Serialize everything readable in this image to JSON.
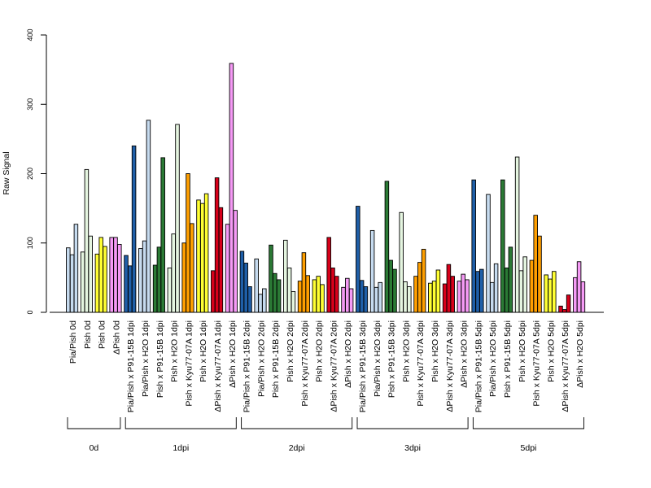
{
  "chart_data": {
    "type": "bar",
    "ylabel": "Raw Signal",
    "ylim": [
      0,
      400
    ],
    "yticks": [
      0,
      100,
      200,
      300,
      400
    ],
    "grid": false,
    "categories": [
      "Pia/Pish 0d",
      "Pish 0d",
      "Pish 0d",
      "ΔPish 0d",
      "Pia/Pish x P91-15B 1dpi",
      "Pia/Pish x H2O 1dpi",
      "Pish x P91-15B 1dpi",
      "Pish x H2O 1dpi",
      "Pish x Kyu77-07A 1dpi",
      "Pish x H2O 1dpi",
      "ΔPish x Kyu77-07A 1dpi",
      "ΔPish x H2O 1dpi",
      "Pia/Pish x P91-15B 2dpi",
      "Pia/Pish x H2O 2dpi",
      "Pish x P91-15B 2dpi",
      "Pish x H2O 2dpi",
      "Pish x Kyu77-07A 2dpi",
      "Pish x H2O 2dpi",
      "ΔPish x Kyu77-07A 2dpi",
      "ΔPish x H2O 2dpi",
      "Pia/Pish x P91-15B 3dpi",
      "Pia/Pish x H2O 3dpi",
      "Pish x P91-15B 3dpi",
      "Pish x H2O 3dpi",
      "Pish x Kyu77-07A 3dpi",
      "Pish x H2O 3dpi",
      "ΔPish x Kyu77-07A 3dpi",
      "ΔPish x H2O 3dpi",
      "Pia/Pish x P91-15B 5dpi",
      "Pia/Pish x H2O 5dpi",
      "Pish x P91-15B 5dpi",
      "Pish x H2O 5dpi",
      "Pish x Kyu77-07A 5dpi",
      "Pish x H2O 5dpi",
      "ΔPish x Kyu77-07A 5dpi",
      "ΔPish x H2O 5dpi"
    ],
    "bar_colors": [
      "#c6dbef",
      "#e5f5e0",
      "#ffff33",
      "#f59af5",
      "#1f5fa8",
      "#c6dbef",
      "#2b7a35",
      "#e5f5e0",
      "#ff9f00",
      "#ffff33",
      "#d7001a",
      "#f59af5",
      "#1f5fa8",
      "#c6dbef",
      "#2b7a35",
      "#e5f5e0",
      "#ff9f00",
      "#ffff33",
      "#d7001a",
      "#f59af5",
      "#1f5fa8",
      "#c6dbef",
      "#2b7a35",
      "#e5f5e0",
      "#ff9f00",
      "#ffff33",
      "#d7001a",
      "#f59af5",
      "#1f5fa8",
      "#c6dbef",
      "#2b7a35",
      "#e5f5e0",
      "#ff9f00",
      "#ffff33",
      "#d7001a",
      "#f59af5"
    ],
    "values": [
      [
        93,
        83,
        127
      ],
      [
        87,
        206,
        110
      ],
      [
        84,
        108,
        95
      ],
      [
        108,
        108,
        98
      ],
      [
        82,
        67,
        240
      ],
      [
        92,
        103,
        277
      ],
      [
        68,
        94,
        223
      ],
      [
        64,
        113,
        271
      ],
      [
        100,
        200,
        128
      ],
      [
        162,
        157,
        171
      ],
      [
        60,
        194,
        151
      ],
      [
        127,
        359,
        147
      ],
      [
        88,
        71,
        37
      ],
      [
        77,
        26,
        34
      ],
      [
        97,
        56,
        47
      ],
      [
        104,
        64,
        30
      ],
      [
        45,
        86,
        53
      ],
      [
        47,
        52,
        40
      ],
      [
        108,
        64,
        52
      ],
      [
        36,
        49,
        34
      ],
      [
        153,
        46,
        37
      ],
      [
        118,
        36,
        43
      ],
      [
        189,
        75,
        62
      ],
      [
        144,
        44,
        37
      ],
      [
        52,
        72,
        91
      ],
      [
        42,
        45,
        61
      ],
      [
        41,
        69,
        52
      ],
      [
        45,
        55,
        47
      ],
      [
        191,
        59,
        62
      ],
      [
        170,
        43,
        70
      ],
      [
        191,
        64,
        94
      ],
      [
        224,
        60,
        80
      ],
      [
        75,
        140,
        110
      ],
      [
        54,
        48,
        59
      ],
      [
        9,
        4,
        25
      ],
      [
        50,
        73,
        44
      ]
    ],
    "groups": [
      {
        "label": "0d",
        "start": 0,
        "end": 3
      },
      {
        "label": "1dpi",
        "start": 4,
        "end": 11
      },
      {
        "label": "2dpi",
        "start": 12,
        "end": 19
      },
      {
        "label": "3dpi",
        "start": 20,
        "end": 27
      },
      {
        "label": "5dpi",
        "start": 28,
        "end": 35
      }
    ]
  }
}
